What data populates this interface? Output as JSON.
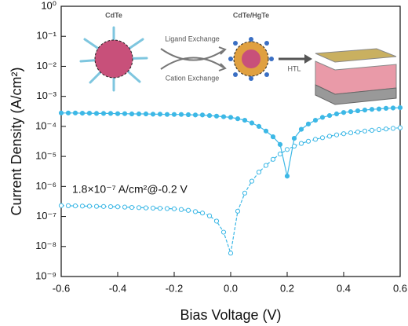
{
  "chart_data": {
    "type": "line",
    "xlabel": "Bias Voltage (V)",
    "ylabel": "Current Density (A/cm²)",
    "annotation": "1.8×10⁻⁷ A/cm²@-0.2 V",
    "inset_labels": [
      "CdTe",
      "CdTe/HgTe",
      "Ligand Exchange",
      "Cation Exchange",
      "HTL"
    ],
    "log_y": true,
    "xlim": [
      -0.6,
      0.6
    ],
    "xticks": [
      -0.6,
      -0.4,
      -0.2,
      {
        "value": 0,
        "label": "0.0"
      },
      0.2,
      0.4,
      0.6
    ],
    "ylim": [
      1e-09,
      1
    ],
    "yticks": [
      {
        "value": 1e-09,
        "label": "10⁻⁹"
      },
      {
        "value": 1e-08,
        "label": "10⁻⁸"
      },
      {
        "value": 1e-07,
        "label": "10⁻⁷"
      },
      {
        "value": 1e-06,
        "label": "10⁻⁶"
      },
      {
        "value": 1e-05,
        "label": "10⁻⁵"
      },
      {
        "value": 0.0001,
        "label": "10⁻⁴"
      },
      {
        "value": 0.001,
        "label": "10⁻³"
      },
      {
        "value": 0.01,
        "label": "10⁻²"
      },
      {
        "value": 0.1,
        "label": "10⁻¹"
      },
      {
        "value": 1,
        "label": "10⁰"
      }
    ],
    "x": [
      -0.6,
      -0.575,
      -0.55,
      -0.525,
      -0.5,
      -0.475,
      -0.45,
      -0.425,
      -0.4,
      -0.375,
      -0.35,
      -0.325,
      -0.3,
      -0.275,
      -0.25,
      -0.225,
      -0.2,
      -0.175,
      -0.15,
      -0.125,
      -0.1,
      -0.075,
      -0.05,
      -0.025,
      0,
      0.025,
      0.05,
      0.075,
      0.1,
      0.125,
      0.15,
      0.175,
      0.2,
      0.225,
      0.25,
      0.275,
      0.3,
      0.325,
      0.35,
      0.375,
      0.4,
      0.425,
      0.45,
      0.475,
      0.5,
      0.525,
      0.55,
      0.575,
      0.6
    ],
    "series": [
      {
        "marker": "filled",
        "color": "#3db8e6",
        "values": [
          0.00028,
          0.00028,
          0.00028,
          0.000275,
          0.000275,
          0.00027,
          0.00027,
          0.00027,
          0.000265,
          0.000265,
          0.00026,
          0.00026,
          0.00026,
          0.000255,
          0.000255,
          0.00025,
          0.00025,
          0.00025,
          0.000245,
          0.00024,
          0.00024,
          0.00023,
          0.00022,
          0.00021,
          0.0002,
          0.00018,
          0.00016,
          0.00013,
          0.0001,
          7e-05,
          4.5e-05,
          2.5e-05,
          2.2e-06,
          4e-05,
          8e-05,
          0.00012,
          0.00016,
          0.0002,
          0.00023,
          0.00026,
          0.00029,
          0.00031,
          0.00033,
          0.00035,
          0.00037,
          0.00038,
          0.0004,
          0.00041,
          0.00042
        ]
      },
      {
        "marker": "open",
        "color": "#3db8e6",
        "values": [
          2.3e-07,
          2.28e-07,
          2.25e-07,
          2.22e-07,
          2.2e-07,
          2.17e-07,
          2.15e-07,
          2.12e-07,
          2.1e-07,
          2.05e-07,
          2e-07,
          1.97e-07,
          1.93e-07,
          1.9e-07,
          1.87e-07,
          1.83e-07,
          1.8e-07,
          1.7e-07,
          1.6e-07,
          1.45e-07,
          1.3e-07,
          1.05e-07,
          7e-08,
          3e-08,
          6e-09,
          1.5e-07,
          6e-07,
          1.5e-06,
          3e-06,
          5e-06,
          8e-06,
          1.2e-05,
          1.7e-05,
          2.2e-05,
          2.7e-05,
          3.2e-05,
          3.7e-05,
          4.2e-05,
          4.7e-05,
          5.2e-05,
          5.7e-05,
          6.1e-05,
          6.5e-05,
          7e-05,
          7.4e-05,
          7.8e-05,
          8.2e-05,
          8.6e-05,
          9e-05
        ]
      }
    ]
  }
}
